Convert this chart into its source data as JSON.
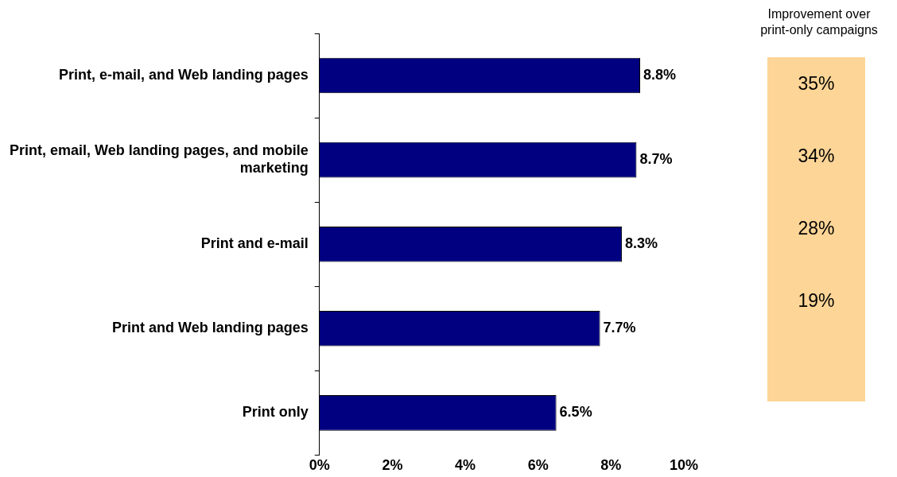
{
  "chart_data": [
    {
      "type": "bar",
      "orientation": "horizontal",
      "categories": [
        "Print, e-mail, and Web landing pages",
        "Print, email, Web landing pages, and mobile marketing",
        "Print and e-mail",
        "Print and Web landing pages",
        "Print only"
      ],
      "values": [
        8.8,
        8.7,
        8.3,
        7.7,
        6.5
      ],
      "color": "#000080",
      "value_labels": [
        "8.8%",
        "8.7%",
        "8.3%",
        "7.7%",
        "6.5%"
      ],
      "xlim": [
        0,
        10
      ],
      "xticks": [
        {
          "value": 0,
          "label": "0%"
        },
        {
          "value": 2,
          "label": "2%"
        },
        {
          "value": 4,
          "label": "4%"
        },
        {
          "value": 6,
          "label": "6%"
        },
        {
          "value": 8,
          "label": "8%"
        },
        {
          "value": 10,
          "label": "10%"
        }
      ],
      "grid": false
    },
    {
      "type": "other",
      "title": "Improvement over print-only campaigns",
      "annotations": [
        "35%",
        "34%",
        "28%",
        "19%"
      ]
    }
  ]
}
